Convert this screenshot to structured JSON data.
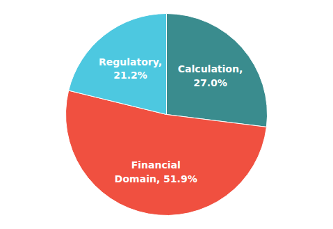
{
  "chart_data": {
    "type": "pie",
    "values": [
      27.0,
      51.9,
      21.2
    ],
    "value_labels": [
      "Calculation,\n27.0%",
      "Financial\nDomain, 51.9%",
      "Regulatory,\n21.2%"
    ],
    "colors": [
      "#3a8c8e",
      "#f05040",
      "#4dc8e0"
    ],
    "data_labels": true
  }
}
